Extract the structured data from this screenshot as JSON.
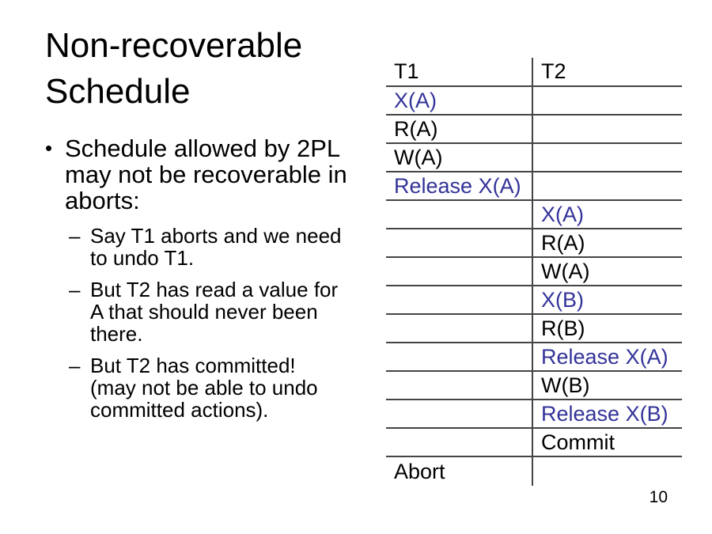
{
  "slide": {
    "title": "Non-recoverable Schedule",
    "page_number": "10",
    "colors": {
      "lock_operation_blue": "#333399",
      "text_black": "#000000",
      "table_line_gray": "#444444",
      "background": "#ffffff"
    }
  },
  "bullets": [
    {
      "level": 1,
      "marker": "•",
      "lines": [
        "Schedule allowed by 2PL",
        "may not be recoverable in",
        "aborts:"
      ]
    },
    {
      "level": 2,
      "marker": "–",
      "lines": [
        "Say T1 aborts and we need",
        "to undo T1."
      ]
    },
    {
      "level": 2,
      "marker": "–",
      "lines": [
        "But T2 has read a value for",
        "A that should never been",
        "there."
      ]
    },
    {
      "level": 2,
      "marker": "–",
      "lines": [
        "But T2 has committed!",
        "(may not be able to undo",
        "committed actions)."
      ]
    }
  ],
  "schedule_table": {
    "columns": [
      "T1",
      "T2"
    ],
    "rows": [
      {
        "column": "T1",
        "text": "X(A)",
        "color": "blue"
      },
      {
        "column": "T1",
        "text": "R(A)",
        "color": "black"
      },
      {
        "column": "T1",
        "text": "W(A)",
        "color": "black"
      },
      {
        "column": "T1",
        "text": "Release X(A)",
        "color": "blue"
      },
      {
        "column": "T2",
        "text": "X(A)",
        "color": "blue"
      },
      {
        "column": "T2",
        "text": "R(A)",
        "color": "black"
      },
      {
        "column": "T2",
        "text": "W(A)",
        "color": "black"
      },
      {
        "column": "T2",
        "text": "X(B)",
        "color": "blue"
      },
      {
        "column": "T2",
        "text": "R(B)",
        "color": "black"
      },
      {
        "column": "T2",
        "text": "Release X(A)",
        "color": "blue"
      },
      {
        "column": "T2",
        "text": "W(B)",
        "color": "black"
      },
      {
        "column": "T2",
        "text": "Release X(B)",
        "color": "blue"
      },
      {
        "column": "T2",
        "text": "Commit",
        "color": "black"
      },
      {
        "column": "T1",
        "text": "Abort",
        "color": "black"
      }
    ]
  }
}
